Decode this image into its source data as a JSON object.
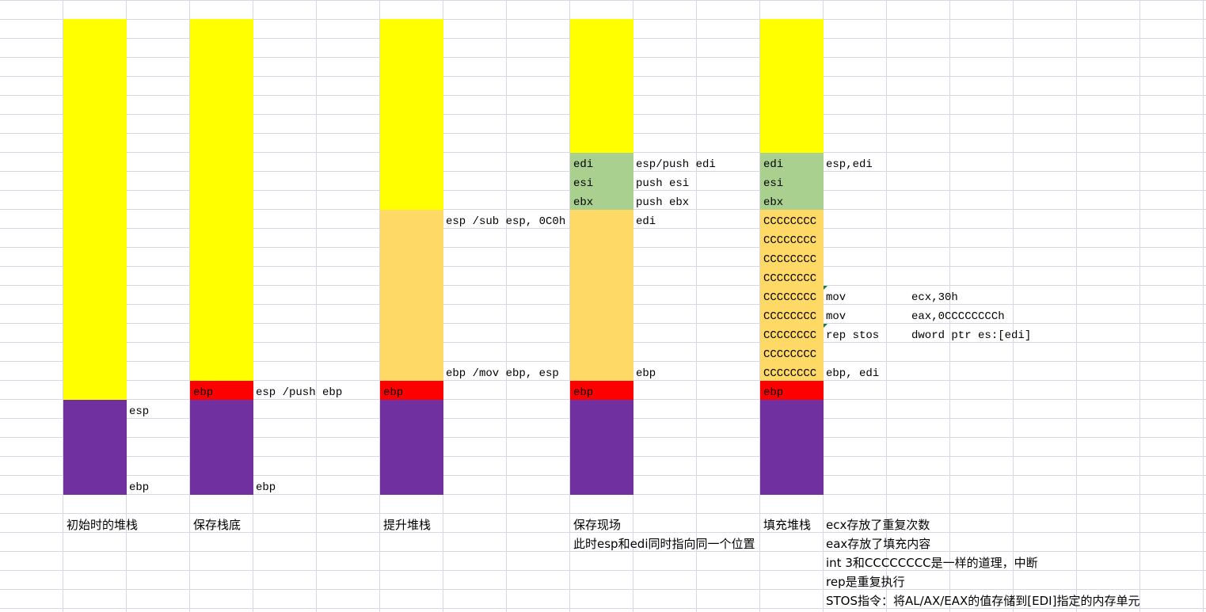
{
  "colors": {
    "stack_top": "#ffff00",
    "frame_space": "#ffd966",
    "saved_regs": "#a9d08e",
    "saved_ebp": "#ff0000",
    "caller_frame": "#7030a0",
    "gridline": "#d4d8e6"
  },
  "col1": {
    "caption": "初始时的堆栈",
    "esp_label": "esp",
    "ebp_label": "ebp"
  },
  "col2": {
    "caption": "保存栈底",
    "ebp_cell": "ebp",
    "push_note": "esp /push ebp",
    "ebp_label": "ebp"
  },
  "col3": {
    "caption": "提升堆栈",
    "ebp_cell": "ebp",
    "sub_note": "esp /sub esp, 0C0h",
    "mov_note": "ebp /mov ebp, esp"
  },
  "col4": {
    "caption": "保存现场",
    "note": "此时esp和edi同时指向同一个位置",
    "regs": [
      "edi",
      "esi",
      "ebx"
    ],
    "reg_notes": [
      "esp/push edi",
      "push esi",
      "push ebx"
    ],
    "edi_label": "edi",
    "ebp_label": "ebp",
    "ebp_cell": "ebp"
  },
  "col5": {
    "caption": "填充堆栈",
    "regs": [
      "edi",
      "esi",
      "ebx"
    ],
    "esp_edi_label": "esp,edi",
    "fill": [
      "CCCCCCCC",
      "CCCCCCCC",
      "CCCCCCCC",
      "CCCCCCCC",
      "CCCCCCCC",
      "CCCCCCCC",
      "CCCCCCCC",
      "CCCCCCCC",
      "CCCCCCCC"
    ],
    "instr1_op": "mov",
    "instr1_arg": "ecx,30h",
    "instr2_op": "mov",
    "instr2_arg": "eax,0CCCCCCCCh",
    "instr3_op": "rep stos",
    "instr3_arg": "dword ptr es:[edi]",
    "ebp_edi_label": "ebp, edi",
    "ebp_cell": "ebp"
  },
  "notes": [
    "ecx存放了重复次数",
    "eax存放了填充内容",
    "int 3和CCCCCCCC是一样的道理，中断",
    "rep是重复执行",
    "STOS指令：将AL/AX/EAX的值存储到[EDI]指定的内存单元"
  ]
}
